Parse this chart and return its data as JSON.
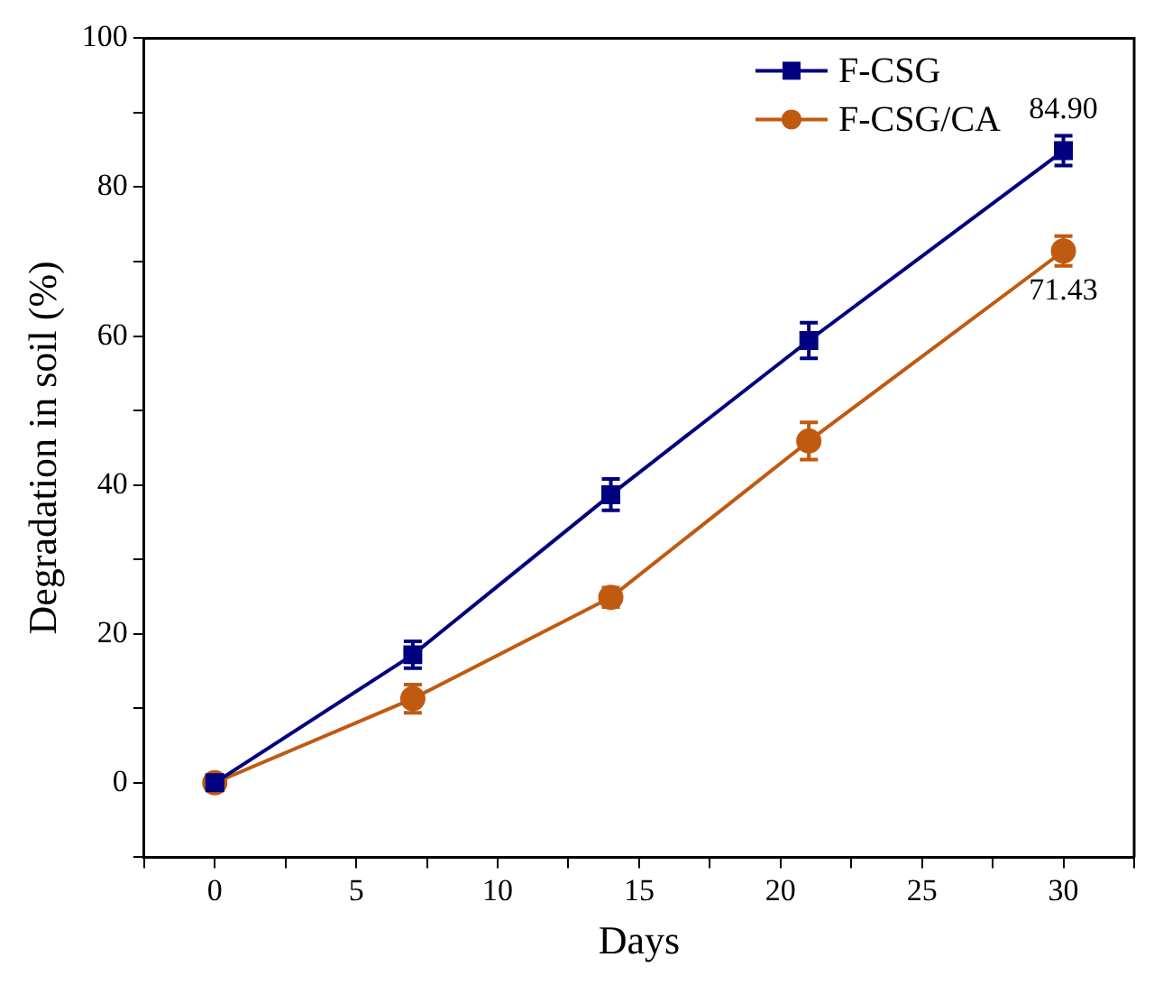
{
  "chart_data": {
    "type": "line",
    "xlabel": "Days",
    "ylabel": "Degradation in soil (%)",
    "x": [
      0,
      7,
      14,
      21,
      30
    ],
    "series": [
      {
        "name": "F-CSG",
        "color": "#000080",
        "marker": "square",
        "values": [
          0,
          17.2,
          38.7,
          59.4,
          84.9
        ],
        "errors": [
          null,
          1.8,
          2.1,
          2.4,
          2.0
        ]
      },
      {
        "name": "F-CSG/CA",
        "color": "#c05a10",
        "marker": "circle",
        "values": [
          0,
          11.3,
          24.9,
          45.9,
          71.43
        ],
        "errors": [
          null,
          1.9,
          1.3,
          2.5,
          2.0
        ]
      }
    ],
    "xlim": [
      -2.5,
      32.5
    ],
    "xticks": [
      {
        "value": -2.5,
        "label": null
      },
      0,
      {
        "value": 2.5,
        "label": null
      },
      5,
      {
        "value": 7.5,
        "label": null
      },
      10,
      {
        "value": 12.5,
        "label": null
      },
      15,
      {
        "value": 17.5,
        "label": null
      },
      20,
      {
        "value": 22.5,
        "label": null
      },
      25,
      {
        "value": 27.5,
        "label": null
      },
      30,
      {
        "value": 32.5,
        "label": null
      }
    ],
    "ylim": [
      -10,
      100
    ],
    "yticks": [
      {
        "value": -10,
        "label": null
      },
      0,
      {
        "value": 10,
        "label": null
      },
      20,
      {
        "value": 30,
        "label": null
      },
      40,
      {
        "value": 50,
        "label": null
      },
      60,
      {
        "value": 70,
        "label": null
      },
      80,
      {
        "value": 90,
        "label": null
      },
      100
    ],
    "annotations": [
      {
        "text": "84.90",
        "x": 30,
        "y": 84.9
      },
      {
        "text": "71.43",
        "x": 30,
        "y": 71.43
      }
    ],
    "grid": false,
    "legend": "top right",
    "line_style": "solid"
  }
}
